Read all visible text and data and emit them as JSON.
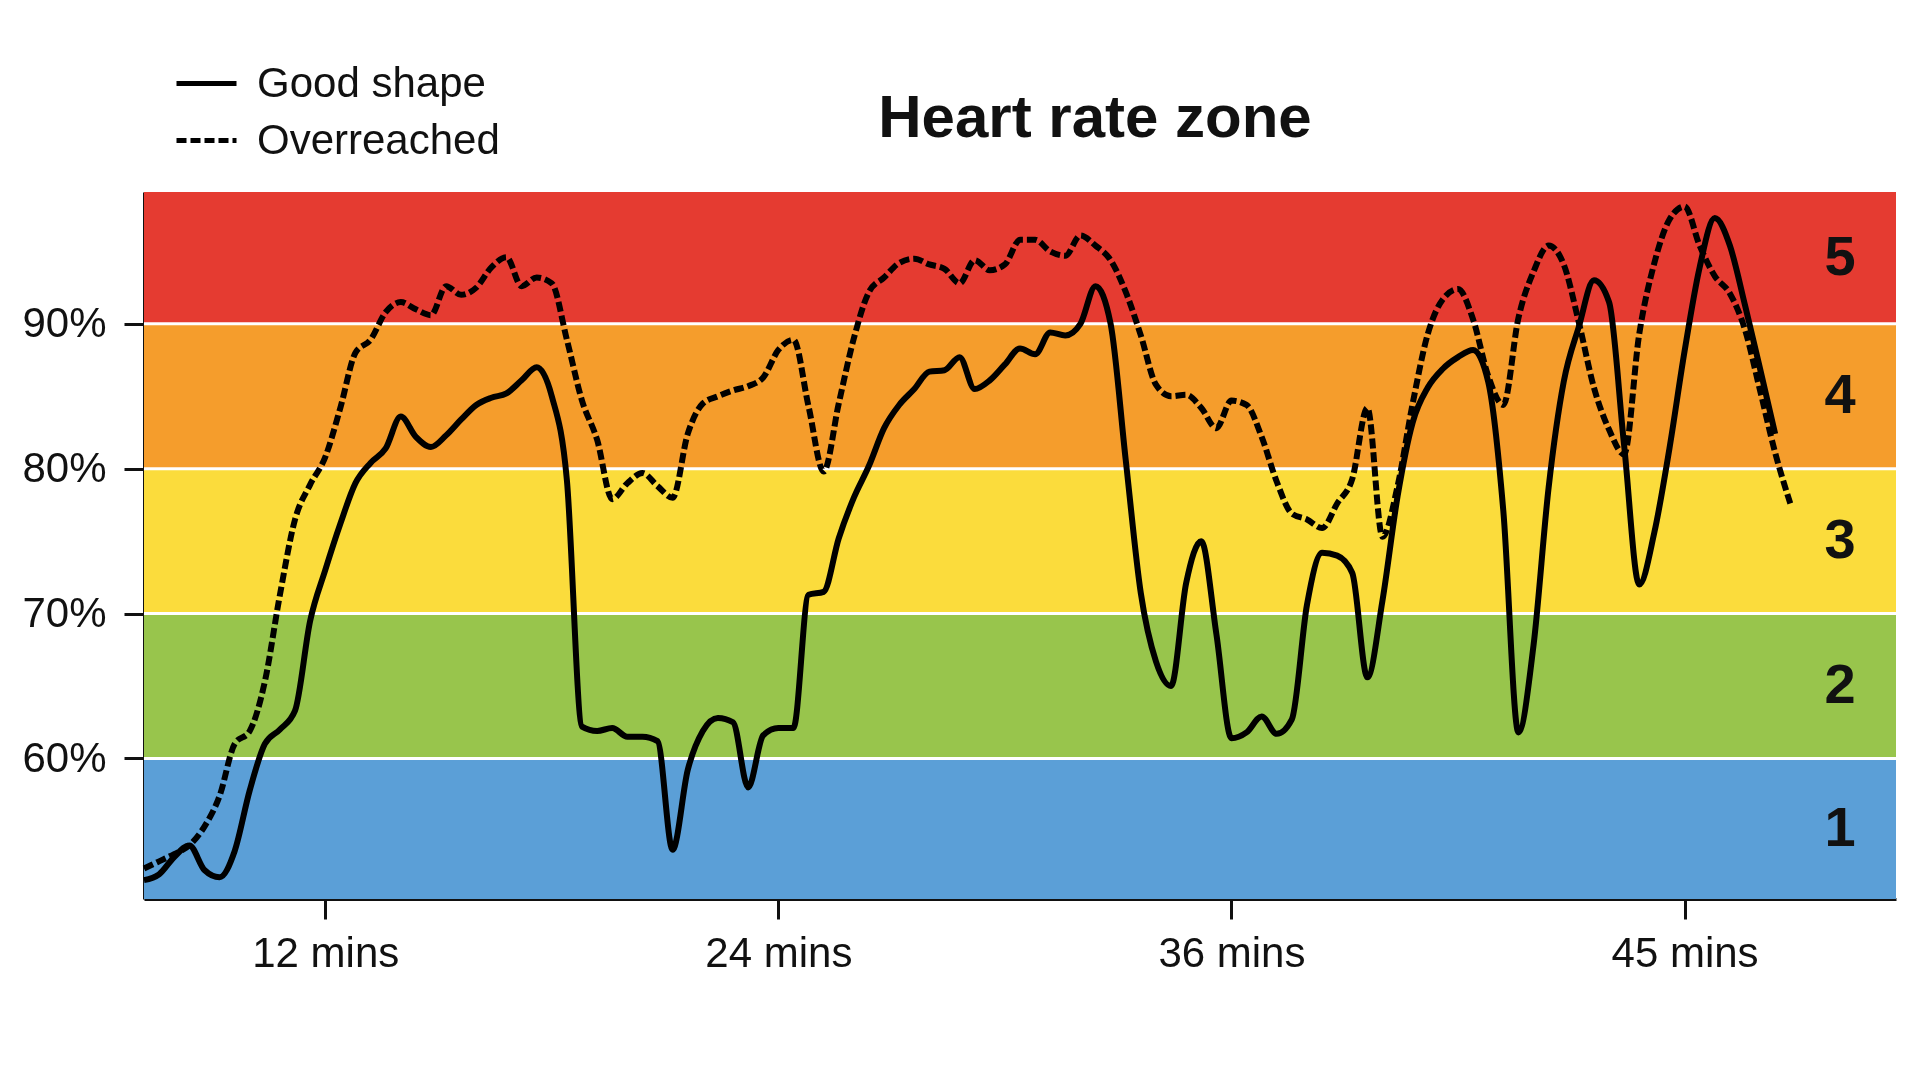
{
  "chart_data": {
    "type": "line",
    "title": "Heart rate zone",
    "categories": [
      null,
      null,
      null,
      null,
      null,
      null,
      null,
      null,
      null,
      null,
      null,
      null,
      "12 mins",
      null,
      null,
      null,
      null,
      null,
      null,
      null,
      null,
      null,
      null,
      null,
      null,
      null,
      null,
      null,
      null,
      null,
      null,
      null,
      null,
      null,
      null,
      null,
      null,
      null,
      null,
      null,
      null,
      null,
      "24 mins",
      null,
      null,
      null,
      null,
      null,
      null,
      null,
      null,
      null,
      null,
      null,
      null,
      null,
      null,
      null,
      null,
      null,
      null,
      null,
      null,
      null,
      null,
      null,
      null,
      null,
      null,
      null,
      null,
      null,
      "36 mins",
      null,
      null,
      null,
      null,
      null,
      null,
      null,
      null,
      null,
      null,
      null,
      null,
      null,
      null,
      null,
      null,
      null,
      null,
      null,
      null,
      null,
      null,
      null,
      null,
      null,
      null,
      null,
      null,
      null,
      "45 mins",
      null,
      null,
      null,
      null,
      null,
      null,
      null,
      null,
      null,
      null,
      null,
      null,
      null,
      null
    ],
    "series": [
      {
        "name": "Good shape",
        "color": "#000000",
        "line_style": "solid",
        "values": [
          51.6,
          52.0,
          53.2,
          54.0,
          52.3,
          51.8,
          53.6,
          57.8,
          61.0,
          62.0,
          63.3,
          69.5,
          73.0,
          76.2,
          79.0,
          80.4,
          81.4,
          83.6,
          82.2,
          81.5,
          82.3,
          83.4,
          84.4,
          84.9,
          85.2,
          86.1,
          87.0,
          85.0,
          79.2,
          62.2,
          61.9,
          62.1,
          61.5,
          61.5,
          61.2,
          53.7,
          59.2,
          61.9,
          62.8,
          62.5,
          58.0,
          61.6,
          62.1,
          62.1,
          71.3,
          71.5,
          75.2,
          78.0,
          80.2,
          82.8,
          84.4,
          85.5,
          86.7,
          86.8,
          87.7,
          85.5,
          86.1,
          87.2,
          88.3,
          87.9,
          89.4,
          89.2,
          90.0,
          92.6,
          90.0,
          80.6,
          71.4,
          66.7,
          65.0,
          72.1,
          75.0,
          68.6,
          61.4,
          61.8,
          62.9,
          61.7,
          62.7,
          70.6,
          74.2,
          74.0,
          72.8,
          65.6,
          70.9,
          78.1,
          83.2,
          85.6,
          86.9,
          87.7,
          88.2,
          86.0,
          77.1,
          61.8,
          67.8,
          78.7,
          86.0,
          89.8,
          93.0,
          91.5,
          81.6,
          72.0,
          75.6,
          81.4,
          88.1,
          93.9,
          97.3,
          95.4,
          91.3,
          86.9,
          82.4,
          null,
          null,
          null,
          null,
          null,
          null,
          null,
          null
        ]
      },
      {
        "name": "Overreached",
        "color": "#000000",
        "line_style": "dashed",
        "values": [
          52.4,
          52.9,
          53.4,
          54.0,
          55.3,
          57.4,
          61.0,
          61.9,
          65.3,
          71.3,
          76.5,
          78.9,
          80.8,
          84.2,
          88.0,
          88.9,
          90.8,
          91.5,
          91.0,
          90.6,
          92.6,
          92.0,
          92.5,
          93.9,
          94.6,
          92.6,
          93.2,
          92.8,
          88.9,
          84.7,
          82.0,
          77.9,
          79.0,
          79.7,
          78.8,
          78.0,
          82.4,
          84.5,
          85.0,
          85.4,
          85.7,
          86.3,
          88.2,
          88.9,
          84.3,
          79.8,
          84.5,
          89.0,
          92.2,
          93.2,
          94.2,
          94.5,
          94.1,
          93.8,
          92.8,
          94.4,
          93.7,
          94.1,
          95.8,
          95.8,
          95.0,
          94.7,
          96.1,
          95.4,
          94.4,
          92.2,
          89.2,
          85.8,
          85.0,
          85.1,
          84.2,
          82.8,
          84.7,
          84.4,
          82.2,
          79.1,
          76.9,
          76.5,
          75.9,
          77.6,
          79.3,
          84.2,
          75.3,
          78.8,
          84.5,
          89.3,
          91.7,
          92.4,
          90.3,
          86.4,
          84.4,
          90.4,
          93.6,
          95.4,
          94.1,
          90.1,
          85.6,
          82.7,
          81.0,
          89.3,
          94.2,
          97.2,
          98.1,
          95.4,
          93.3,
          92.1,
          89.6,
          85.4,
          81.1,
          77.6,
          null,
          null,
          null,
          null,
          null,
          null,
          null
        ]
      }
    ],
    "ylim": [
      50.3,
      99.1
    ],
    "yticks": [
      {
        "value": 60,
        "label": "60%"
      },
      {
        "value": 70,
        "label": "70%"
      },
      {
        "value": 80,
        "label": "80%"
      },
      {
        "value": 90,
        "label": "90%"
      }
    ],
    "bands": [
      {
        "axis": "y",
        "from": 50.3,
        "to": 60,
        "label": "1",
        "color": "#5b9fd7"
      },
      {
        "axis": "y",
        "from": 60,
        "to": 70,
        "label": "2",
        "color": "#98c54c"
      },
      {
        "axis": "y",
        "from": 70,
        "to": 80,
        "label": "3",
        "color": "#fbdc3c"
      },
      {
        "axis": "y",
        "from": 80,
        "to": 90,
        "label": "4",
        "color": "#f59d2c"
      },
      {
        "axis": "y",
        "from": 90,
        "to": 99.1,
        "label": "5",
        "color": "#e53b31"
      }
    ],
    "grid": "y",
    "legend": "top left"
  }
}
